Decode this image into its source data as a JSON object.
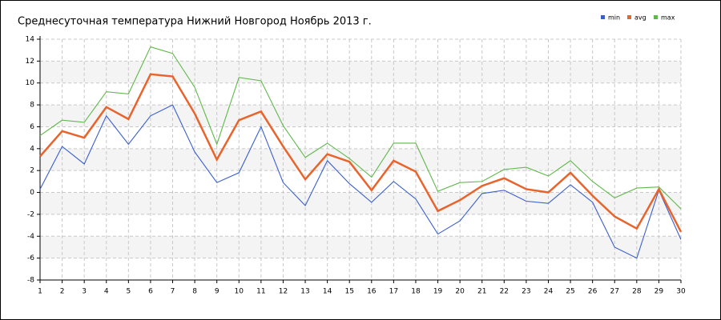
{
  "chart_data": {
    "type": "line",
    "title": "Среднесуточная температура Нижний Новгород  Ноябрь 2013 г.",
    "x": [
      1,
      2,
      3,
      4,
      5,
      6,
      7,
      8,
      9,
      10,
      11,
      12,
      13,
      14,
      15,
      16,
      17,
      18,
      19,
      20,
      21,
      22,
      23,
      24,
      25,
      26,
      27,
      28,
      29,
      30
    ],
    "xlim": [
      1,
      30
    ],
    "xticks": [
      1,
      2,
      3,
      4,
      5,
      6,
      7,
      8,
      9,
      10,
      11,
      12,
      13,
      14,
      15,
      16,
      17,
      18,
      19,
      20,
      21,
      22,
      23,
      24,
      25,
      26,
      27,
      28,
      29,
      30
    ],
    "ylim": [
      -8,
      14
    ],
    "yticks": [
      -8,
      -6,
      -4,
      -2,
      0,
      2,
      4,
      6,
      8,
      10,
      12,
      14
    ],
    "grid": true,
    "legend": "top-right",
    "series": [
      {
        "name": "min",
        "color": "#3a5fcd",
        "values": [
          0.3,
          4.2,
          2.6,
          7.0,
          4.4,
          7.0,
          8.0,
          3.7,
          0.9,
          1.8,
          6.0,
          0.9,
          -1.2,
          2.9,
          0.8,
          -0.9,
          1.0,
          -0.6,
          -3.8,
          -2.6,
          -0.1,
          0.2,
          -0.8,
          -1.0,
          0.7,
          -0.9,
          -5.0,
          -6.0,
          0.2,
          -4.3
        ]
      },
      {
        "name": "avg",
        "color": "#e8642c",
        "values": [
          3.3,
          5.6,
          5.0,
          7.8,
          6.7,
          10.8,
          10.6,
          7.2,
          3.0,
          6.6,
          7.4,
          4.2,
          1.2,
          3.5,
          2.8,
          0.2,
          2.9,
          1.9,
          -1.7,
          -0.7,
          0.6,
          1.3,
          0.3,
          0.0,
          1.8,
          -0.3,
          -2.2,
          -3.3,
          0.3,
          -3.6
        ]
      },
      {
        "name": "max",
        "color": "#5fb84a",
        "values": [
          5.2,
          6.6,
          6.4,
          9.2,
          9.0,
          13.3,
          12.7,
          9.6,
          4.4,
          10.5,
          10.2,
          6.1,
          3.2,
          4.5,
          3.1,
          1.4,
          4.5,
          4.5,
          0.1,
          0.9,
          1.0,
          2.1,
          2.3,
          1.5,
          2.9,
          1.0,
          -0.5,
          0.4,
          0.5,
          -1.5
        ]
      }
    ]
  }
}
